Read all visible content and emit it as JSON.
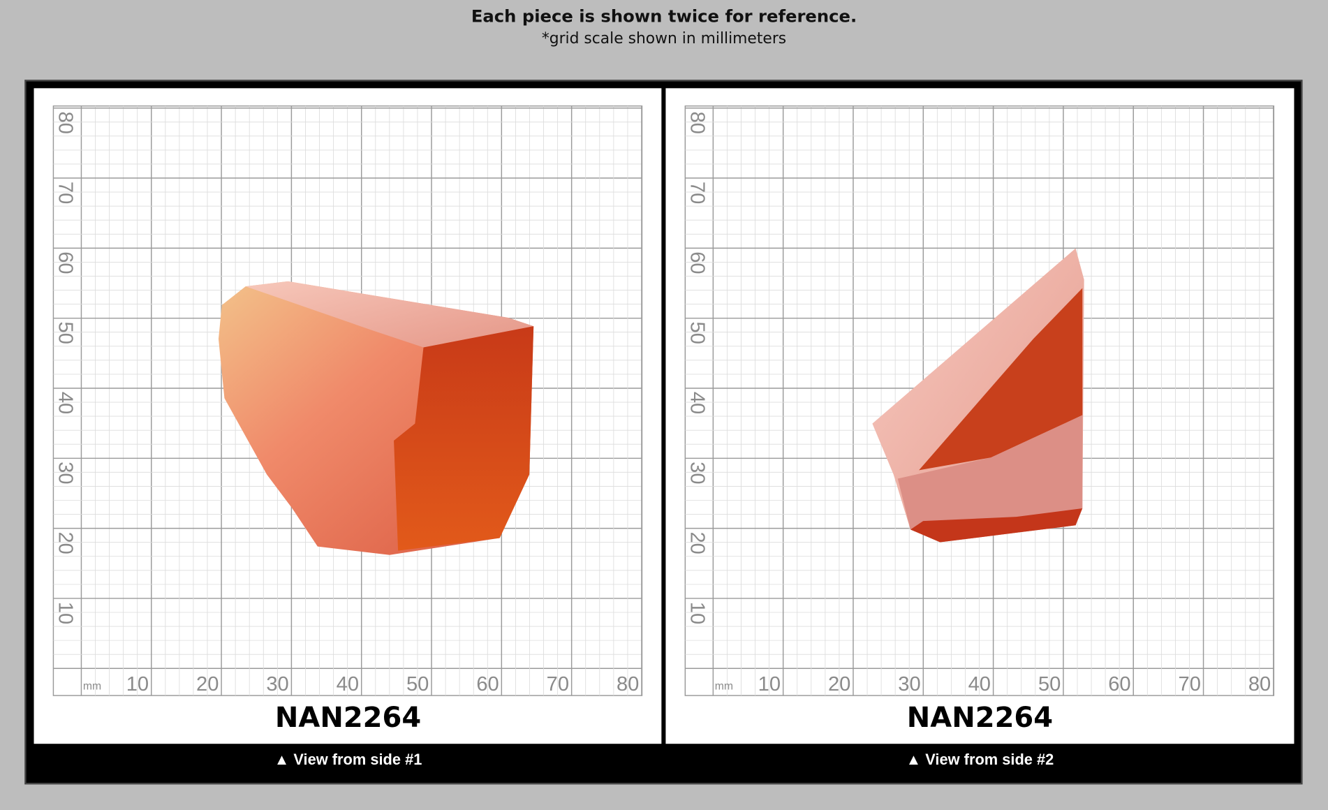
{
  "header": {
    "title": "Each piece is shown twice for reference.",
    "subtitle": "*grid scale shown in millimeters"
  },
  "panels": [
    {
      "unit": "mm",
      "x_labels": [
        "10",
        "20",
        "30",
        "40",
        "50",
        "60",
        "70",
        "80"
      ],
      "y_labels": [
        "10",
        "20",
        "30",
        "40",
        "50",
        "60",
        "70",
        "80"
      ],
      "code": "NAN2264",
      "caption": "▲ View from side #1"
    },
    {
      "unit": "mm",
      "x_labels": [
        "10",
        "20",
        "30",
        "40",
        "50",
        "60",
        "70",
        "80"
      ],
      "y_labels": [
        "10",
        "20",
        "30",
        "40",
        "50",
        "60",
        "70",
        "80"
      ],
      "code": "NAN2264",
      "caption": "▲ View from side #2"
    }
  ]
}
